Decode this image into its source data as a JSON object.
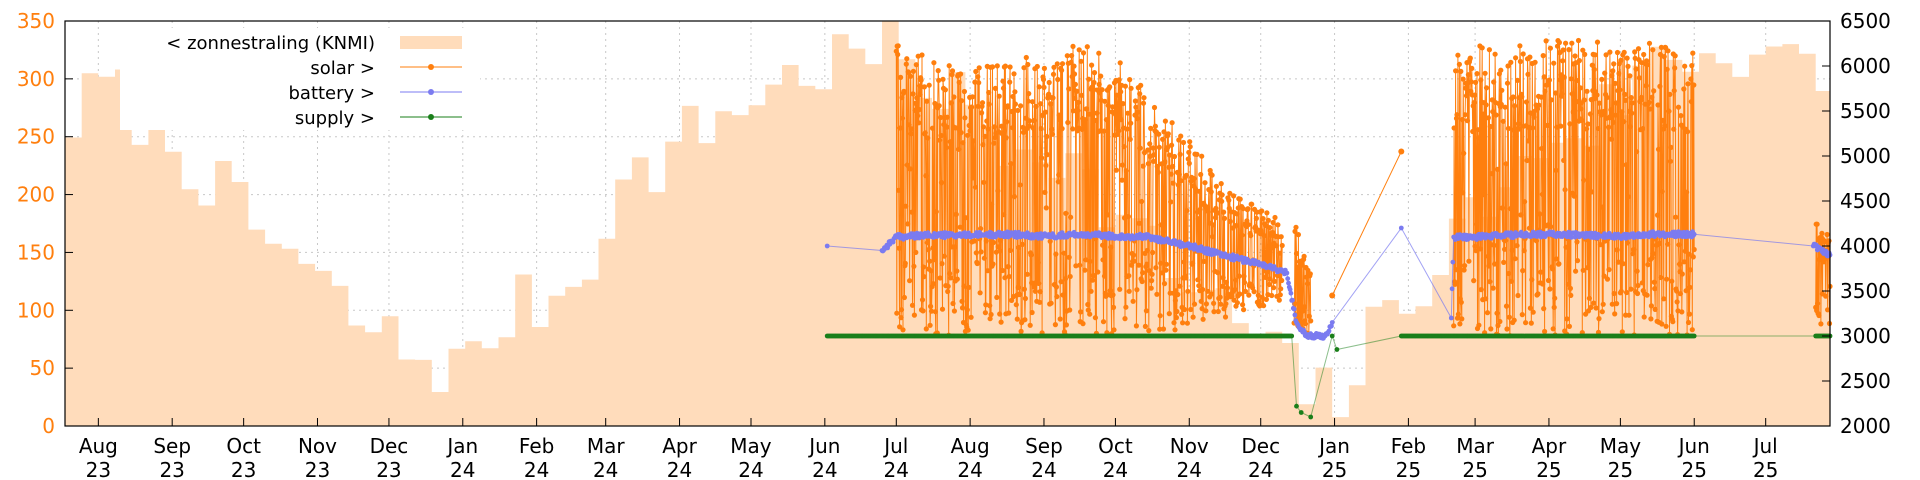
{
  "chart_data": {
    "type": "line",
    "title": "",
    "colors": {
      "radiation": "#ffdcbb",
      "solar": "#ff7f0e",
      "battery": "#7b7bf0",
      "supply": "#1a7f1a",
      "grid": "#c8c8c8",
      "left_axis_text": "#ff7f0e"
    },
    "x_axis": {
      "range": [
        "2023-07-18",
        "2025-07-28"
      ],
      "ticks": [
        {
          "date": "2023-08-01",
          "month": "Aug",
          "year": "23"
        },
        {
          "date": "2023-09-01",
          "month": "Sep",
          "year": "23"
        },
        {
          "date": "2023-10-01",
          "month": "Oct",
          "year": "23"
        },
        {
          "date": "2023-11-01",
          "month": "Nov",
          "year": "23"
        },
        {
          "date": "2023-12-01",
          "month": "Dec",
          "year": "23"
        },
        {
          "date": "2024-01-01",
          "month": "Jan",
          "year": "24"
        },
        {
          "date": "2024-02-01",
          "month": "Feb",
          "year": "24"
        },
        {
          "date": "2024-03-01",
          "month": "Mar",
          "year": "24"
        },
        {
          "date": "2024-04-01",
          "month": "Apr",
          "year": "24"
        },
        {
          "date": "2024-05-01",
          "month": "May",
          "year": "24"
        },
        {
          "date": "2024-06-01",
          "month": "Jun",
          "year": "24"
        },
        {
          "date": "2024-07-01",
          "month": "Jul",
          "year": "24"
        },
        {
          "date": "2024-08-01",
          "month": "Aug",
          "year": "24"
        },
        {
          "date": "2024-09-01",
          "month": "Sep",
          "year": "24"
        },
        {
          "date": "2024-10-01",
          "month": "Oct",
          "year": "24"
        },
        {
          "date": "2024-11-01",
          "month": "Nov",
          "year": "24"
        },
        {
          "date": "2024-12-01",
          "month": "Dec",
          "year": "24"
        },
        {
          "date": "2025-01-01",
          "month": "Jan",
          "year": "25"
        },
        {
          "date": "2025-02-01",
          "month": "Feb",
          "year": "25"
        },
        {
          "date": "2025-03-01",
          "month": "Mar",
          "year": "25"
        },
        {
          "date": "2025-04-01",
          "month": "Apr",
          "year": "25"
        },
        {
          "date": "2025-05-01",
          "month": "May",
          "year": "25"
        },
        {
          "date": "2025-06-01",
          "month": "Jun",
          "year": "25"
        },
        {
          "date": "2025-07-01",
          "month": "Jul",
          "year": "25"
        }
      ]
    },
    "y_left": {
      "range": [
        0,
        350
      ],
      "ticks": [
        0,
        50,
        100,
        150,
        200,
        250,
        300,
        350
      ]
    },
    "y_right": {
      "range": [
        2000,
        6500
      ],
      "ticks": [
        2000,
        2500,
        3000,
        3500,
        4000,
        4500,
        5000,
        5500,
        6000,
        6500
      ]
    },
    "grid": true,
    "legend": {
      "placement": "top-left",
      "items": [
        {
          "label": "< zonnestraling (KNMI)",
          "series": "radiation",
          "style": "box"
        },
        {
          "label": "solar >",
          "series": "solar",
          "style": "line-point"
        },
        {
          "label": "battery >",
          "series": "battery",
          "style": "line-point"
        },
        {
          "label": "supply >",
          "series": "supply",
          "style": "line-point"
        }
      ]
    },
    "series": [
      {
        "name": "< zonnestraling (KNMI)",
        "key": "radiation",
        "axis": "left",
        "kind": "area",
        "x": [
          "2023-07-18",
          "2023-08-01",
          "2023-08-15",
          "2023-09-01",
          "2023-09-15",
          "2023-10-01",
          "2023-10-15",
          "2023-11-01",
          "2023-11-15",
          "2023-12-01",
          "2023-12-15",
          "2024-01-01",
          "2024-01-15",
          "2024-02-01",
          "2024-02-15",
          "2024-03-01",
          "2024-03-15",
          "2024-04-01",
          "2024-04-15",
          "2024-05-01",
          "2024-05-15",
          "2024-06-01",
          "2024-06-15",
          "2024-07-01",
          "2024-07-15",
          "2024-08-01",
          "2024-08-15",
          "2024-09-01",
          "2024-09-15",
          "2024-10-01",
          "2024-10-15",
          "2024-11-01",
          "2024-11-15",
          "2024-12-01",
          "2024-12-15",
          "2025-01-01",
          "2025-01-15",
          "2025-02-01",
          "2025-02-15",
          "2025-03-01",
          "2025-03-15",
          "2025-04-01",
          "2025-04-15",
          "2025-05-01",
          "2025-05-15",
          "2025-06-01",
          "2025-06-15",
          "2025-07-01",
          "2025-07-15",
          "2025-07-28"
        ],
        "y": [
          265,
          295,
          270,
          240,
          210,
          170,
          155,
          115,
          90,
          70,
          55,
          50,
          95,
          110,
          125,
          200,
          220,
          250,
          265,
          290,
          300,
          315,
          320,
          320,
          290,
          270,
          240,
          250,
          210,
          180,
          150,
          115,
          95,
          70,
          30,
          25,
          80,
          125,
          150,
          195,
          210,
          255,
          260,
          290,
          320,
          320,
          325,
          330,
          300,
          250
        ]
      },
      {
        "name": "solar >",
        "key": "solar",
        "axis": "right",
        "kind": "line-point",
        "segments": [
          {
            "x": [
              "2024-07-01",
              "2024-07-15",
              "2024-08-01",
              "2024-08-15",
              "2024-09-01",
              "2024-09-15",
              "2024-10-01",
              "2024-10-15",
              "2024-11-01",
              "2024-11-15",
              "2024-12-01",
              "2024-12-10"
            ],
            "high": [
              6250,
              6100,
              6000,
              6050,
              6150,
              6300,
              6100,
              5700,
              5200,
              4700,
              4400,
              4300
            ],
            "low": [
              3000,
              3000,
              3000,
              3050,
              3000,
              3000,
              3000,
              3000,
              3100,
              3200,
              3300,
              3400
            ]
          },
          {
            "x": [
              "2024-12-15",
              "2024-12-22"
            ],
            "high": [
              4400,
              3700
            ],
            "low": [
              3000,
              3000
            ]
          },
          {
            "x": [
              "2025-02-20",
              "2025-03-01",
              "2025-03-15",
              "2025-04-01",
              "2025-04-15",
              "2025-05-01",
              "2025-05-15",
              "2025-06-01"
            ],
            "high": [
              6150,
              6250,
              6250,
              6300,
              6320,
              6300,
              6250,
              6250
            ],
            "low": [
              3000,
              3000,
              3000,
              3000,
              3000,
              3000,
              3000,
              3000
            ]
          },
          {
            "x": [
              "2025-07-22",
              "2025-07-28"
            ],
            "high": [
              4300,
              4100
            ],
            "low": [
              3100,
              3100
            ]
          }
        ],
        "outliers": {
          "x": [
            "2024-12-31",
            "2025-01-29"
          ],
          "y": [
            3450,
            5050
          ]
        }
      },
      {
        "name": "battery >",
        "key": "battery",
        "axis": "right",
        "kind": "line-point",
        "points": {
          "x": [
            "2024-06-02",
            "2024-06-25",
            "2024-07-01",
            "2024-07-15",
            "2024-08-01",
            "2024-08-15",
            "2024-09-01",
            "2024-09-15",
            "2024-10-01",
            "2024-10-15",
            "2024-11-01",
            "2024-11-15",
            "2024-12-01",
            "2024-12-12",
            "2024-12-16",
            "2024-12-20",
            "2024-12-28",
            "2024-12-31",
            "2025-01-29",
            "2025-02-19",
            "2025-02-20",
            "2025-03-01",
            "2025-03-15",
            "2025-04-01",
            "2025-04-15",
            "2025-05-01",
            "2025-05-15",
            "2025-06-01",
            "2025-07-21",
            "2025-07-28"
          ],
          "y": [
            4000,
            3950,
            4100,
            4120,
            4120,
            4130,
            4110,
            4130,
            4110,
            4100,
            4000,
            3900,
            3800,
            3700,
            3150,
            3000,
            3000,
            3150,
            4200,
            3200,
            4100,
            4100,
            4120,
            4130,
            4120,
            4110,
            4130,
            4130,
            4000,
            3900
          ]
        }
      },
      {
        "name": "supply >",
        "key": "supply",
        "axis": "right",
        "kind": "line-point",
        "points": {
          "x": [
            "2024-06-02",
            "2024-07-01",
            "2024-08-01",
            "2024-09-01",
            "2024-10-01",
            "2024-11-01",
            "2024-12-01",
            "2024-12-14",
            "2024-12-16",
            "2024-12-18",
            "2024-12-22",
            "2024-12-31",
            "2025-01-02",
            "2025-01-29",
            "2025-02-20",
            "2025-03-01",
            "2025-04-01",
            "2025-05-01",
            "2025-06-01",
            "2025-07-22",
            "2025-07-28"
          ],
          "y": [
            3000,
            3000,
            3000,
            3000,
            3000,
            3000,
            3000,
            3000,
            2220,
            2150,
            2100,
            3000,
            2850,
            3000,
            3000,
            3000,
            3000,
            3000,
            3000,
            3000,
            3000
          ]
        }
      }
    ]
  }
}
